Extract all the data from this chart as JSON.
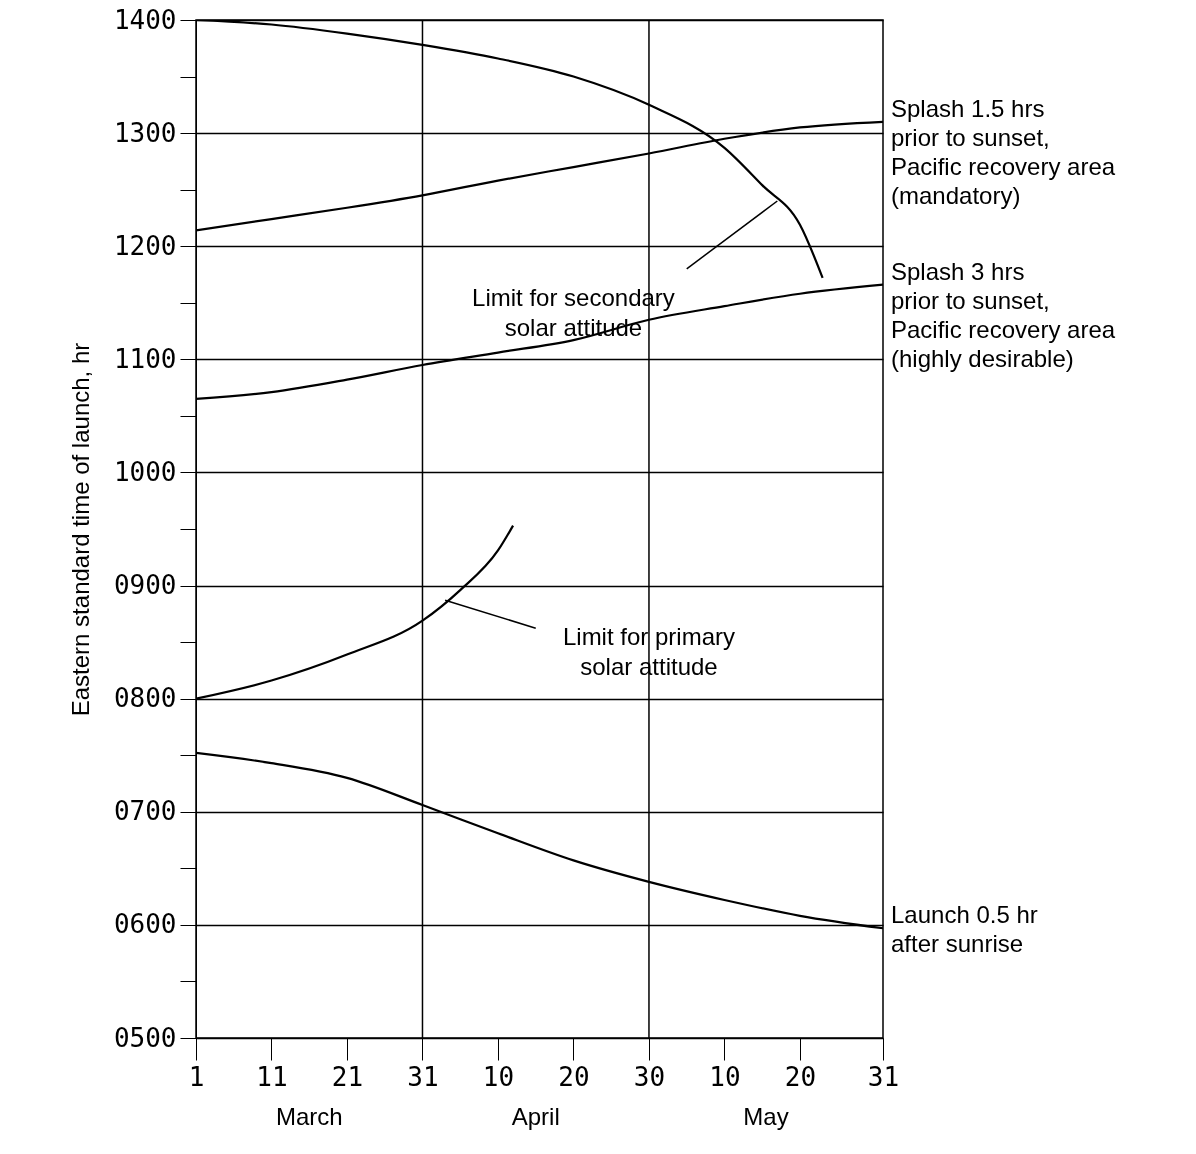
{
  "chart_data": {
    "type": "line",
    "ylabel": "Eastern standard time of launch, hr",
    "x": [
      "--03-01",
      "--03-11",
      "--03-21",
      "--03-31",
      "--04-10",
      "--04-20",
      "--04-30",
      "--05-10",
      "--05-20",
      "--05-31"
    ],
    "series": [
      {
        "name": "Splash 1.5 hrs\nprior to sunset,\nPacific recovery area\n(mandatory)",
        "color": "#000000",
        "values": [
          1214,
          1224,
          1234,
          1245,
          1258,
          1270,
          1282,
          1295,
          1305,
          1310
        ]
      },
      {
        "name": "Splash 3 hrs\nprior to sunset,\nPacific recovery area\n(highly desirable)",
        "color": "#000000",
        "values": [
          1065,
          1071,
          1082,
          1095,
          1106,
          1117,
          1135,
          1147,
          1158,
          1166
        ]
      },
      {
        "name": "Launch 0.5 hr\nafter sunrise",
        "color": "#000000",
        "values": [
          752,
          743,
          730,
          706,
          681,
          657,
          638,
          622,
          608,
          597
        ]
      },
      {
        "color": "#000000",
        "x": [
          "--03-01",
          "--03-11",
          "--03-21",
          "--03-31",
          "--04-10",
          "--04-20",
          "--04-30",
          "--05-10",
          "--05-15",
          "--05-20",
          "--05-23"
        ],
        "values": [
          1400,
          1396,
          1388,
          1378,
          1366,
          1350,
          1325,
          1287,
          1254,
          1219,
          1172
        ]
      },
      {
        "color": "#000000",
        "x": [
          "--03-01",
          "--03-11",
          "--03-21",
          "--03-31",
          "--04-05",
          "--04-10",
          "--04-12"
        ],
        "values": [
          800,
          816,
          839,
          869,
          896,
          931,
          953
        ]
      }
    ],
    "xlim": [
      "--03-01",
      "--05-31"
    ],
    "xticks": [
      {
        "value": "--03-01",
        "label": "1"
      },
      {
        "value": "--03-11",
        "label": "11"
      },
      {
        "value": "--03-21",
        "label": "21"
      },
      {
        "value": "--03-31",
        "label": "31"
      },
      {
        "value": "--04-10",
        "label": "10"
      },
      {
        "value": "--04-20",
        "label": "20"
      },
      {
        "value": "--04-30",
        "label": "30"
      },
      {
        "value": "--05-10",
        "label": "10"
      },
      {
        "value": "--05-20",
        "label": "20"
      },
      {
        "value": "--05-31",
        "label": "31"
      }
    ],
    "ylim": [
      500,
      1400
    ],
    "yticks": [
      {
        "value": 500,
        "label": "0500"
      },
      {
        "value": 550,
        "label": null
      },
      {
        "value": 600,
        "label": "0600"
      },
      {
        "value": 650,
        "label": null
      },
      {
        "value": 700,
        "label": "0700"
      },
      {
        "value": 750,
        "label": null
      },
      {
        "value": 800,
        "label": "0800"
      },
      {
        "value": 850,
        "label": null
      },
      {
        "value": 900,
        "label": "0900"
      },
      {
        "value": 950,
        "label": null
      },
      1000,
      {
        "value": 1050,
        "label": null
      },
      1100,
      {
        "value": 1150,
        "label": null
      },
      1200,
      {
        "value": 1250,
        "label": null
      },
      1300,
      {
        "value": 1350,
        "label": null
      },
      1400
    ],
    "grid": "y",
    "ref_lines": [
      {
        "axis": "x",
        "value": "--03-31"
      },
      {
        "axis": "x",
        "value": "--04-30"
      }
    ],
    "annotations": [
      {
        "text": "Limit for secondary\nsolar attitude",
        "x": "--05-17",
        "y": 1240
      },
      {
        "text": "Limit for primary\nsolar attitude",
        "x": "--04-03",
        "y": 887
      },
      "March",
      "April",
      "May"
    ]
  }
}
